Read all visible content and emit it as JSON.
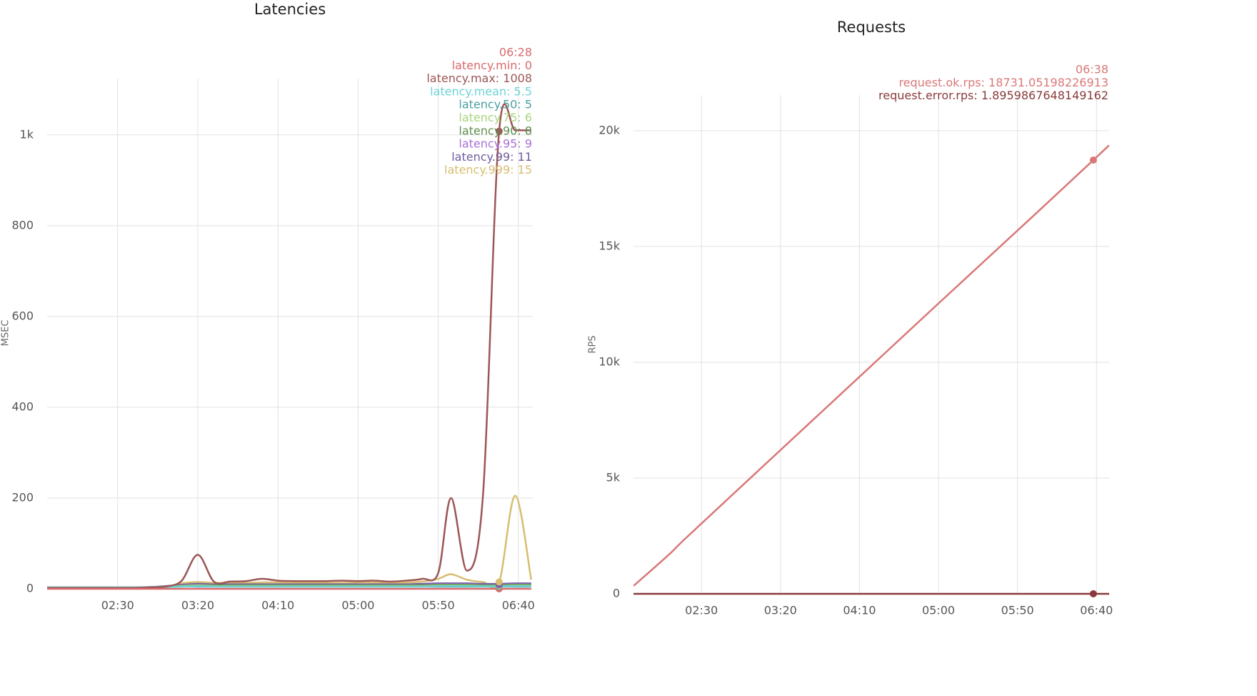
{
  "chart_data": [
    {
      "type": "line",
      "title": "Latencies",
      "y_label": "MSEC",
      "x": [
        "01:46",
        "02:00",
        "02:10",
        "02:20",
        "02:30",
        "02:40",
        "02:50",
        "03:00",
        "03:10",
        "03:20",
        "03:30",
        "03:40",
        "03:50",
        "04:00",
        "04:10",
        "04:20",
        "04:30",
        "04:40",
        "04:50",
        "05:00",
        "05:10",
        "05:20",
        "05:30",
        "05:40",
        "05:50",
        "05:58",
        "06:08",
        "06:18",
        "06:28",
        "06:38",
        "06:48"
      ],
      "series": [
        {
          "name": "latency.min",
          "color": "#d9696c",
          "values": [
            0,
            0,
            0,
            0,
            0,
            0,
            0,
            0,
            0,
            0,
            0,
            0,
            0,
            0,
            0,
            0,
            0,
            0,
            0,
            0,
            0,
            0,
            0,
            0,
            0,
            0,
            0,
            0,
            0,
            0,
            0
          ]
        },
        {
          "name": "latency.max",
          "color": "#9c5656",
          "values": [
            2,
            2,
            2,
            2,
            2,
            2,
            3,
            5,
            18,
            75,
            16,
            16,
            17,
            22,
            18,
            17,
            17,
            17,
            18,
            17,
            18,
            16,
            18,
            22,
            35,
            200,
            40,
            210,
            1008,
            1010,
            1010
          ]
        },
        {
          "name": "latency.mean",
          "color": "#6dd3d6",
          "values": [
            3,
            3,
            3,
            3,
            3,
            3,
            3,
            4,
            5,
            6,
            5,
            5,
            5,
            5,
            5,
            5,
            5,
            5,
            5,
            5,
            5,
            5,
            5,
            5,
            6,
            6,
            6,
            5.5,
            5.5,
            6,
            6
          ]
        },
        {
          "name": "latency.50",
          "color": "#4a9ea0",
          "values": [
            3,
            3,
            3,
            3,
            3,
            3,
            3,
            4,
            5,
            5,
            5,
            5,
            5,
            5,
            5,
            5,
            5,
            5,
            5,
            5,
            5,
            5,
            5,
            5,
            5,
            5,
            5,
            5,
            5,
            5,
            5
          ]
        },
        {
          "name": "latency.75",
          "color": "#a6d57a",
          "values": [
            3,
            3,
            3,
            3,
            3,
            3,
            3,
            4,
            6,
            7,
            6,
            6,
            6,
            6,
            6,
            6,
            6,
            6,
            6,
            6,
            6,
            6,
            6,
            6,
            7,
            7,
            7,
            6,
            6,
            7,
            7
          ]
        },
        {
          "name": "latency.90",
          "color": "#5f8f4f",
          "values": [
            3,
            3,
            3,
            3,
            3,
            3,
            3,
            5,
            7,
            8,
            8,
            8,
            8,
            8,
            8,
            8,
            8,
            8,
            8,
            8,
            8,
            8,
            8,
            8,
            9,
            9,
            9,
            8,
            8,
            9,
            9
          ]
        },
        {
          "name": "latency.95",
          "color": "#a970d8",
          "values": [
            3,
            3,
            3,
            3,
            3,
            3,
            4,
            5,
            8,
            9,
            9,
            9,
            9,
            9,
            9,
            9,
            9,
            9,
            9,
            9,
            9,
            9,
            9,
            9,
            10,
            10,
            10,
            9,
            9,
            10,
            10
          ]
        },
        {
          "name": "latency.99",
          "color": "#6f5c9f",
          "values": [
            3,
            3,
            3,
            3,
            3,
            3,
            4,
            6,
            9,
            11,
            10,
            10,
            10,
            10,
            10,
            10,
            10,
            10,
            10,
            10,
            10,
            10,
            10,
            11,
            12,
            12,
            12,
            11,
            11,
            12,
            12
          ]
        },
        {
          "name": "latency.999",
          "color": "#d7bd70",
          "values": [
            2,
            1,
            1,
            1,
            1,
            2,
            3,
            5,
            12,
            15,
            13,
            13,
            13,
            14,
            14,
            13,
            13,
            13,
            13,
            14,
            14,
            13,
            14,
            16,
            22,
            32,
            20,
            15,
            15,
            205,
            20
          ]
        }
      ],
      "xlim": [
        "01:46",
        "06:49"
      ],
      "xticks": [
        "02:30",
        "03:20",
        "04:10",
        "05:00",
        "05:50",
        "06:40"
      ],
      "ylim": [
        0,
        1124
      ],
      "yticks": [
        0,
        200,
        400,
        600,
        800,
        {
          "value": 1000,
          "label": "1k"
        }
      ],
      "grid": true,
      "hover": {
        "x": "06:28",
        "labels": [
          "latency.min: 0",
          "latency.max: 1008",
          "latency.mean: 5.5",
          "latency.50: 5",
          "latency.75: 6",
          "latency.90: 8",
          "latency.95: 9",
          "latency.99: 11",
          "latency.999: 15"
        ]
      }
    },
    {
      "type": "line",
      "title": "Requests",
      "y_label": "RPS",
      "x": [
        "01:47",
        "02:09",
        "02:20",
        "03:00",
        "04:00",
        "05:00",
        "06:00",
        "06:38",
        "06:48"
      ],
      "series": [
        {
          "name": "request.ok.rps",
          "color": "#d97777",
          "values": [
            340,
            1667,
            2400,
            4940,
            8740,
            12540,
            16320,
            18731.05198226913,
            19370
          ]
        },
        {
          "name": "request.error.rps",
          "color": "#8a3a3c",
          "values": [
            1.9,
            1.9,
            1.9,
            1.9,
            1.9,
            1.9,
            1.9,
            1.8959867648149162,
            1.9
          ]
        }
      ],
      "xlim": [
        "01:47",
        "06:48"
      ],
      "xticks": [
        "02:30",
        "03:20",
        "04:10",
        "05:00",
        "05:50",
        "06:40"
      ],
      "ylim": [
        0,
        21540
      ],
      "yticks": [
        0,
        {
          "value": 5000,
          "label": "5k"
        },
        {
          "value": 10000,
          "label": "10k"
        },
        {
          "value": 15000,
          "label": "15k"
        },
        {
          "value": 20000,
          "label": "20k"
        }
      ],
      "grid": true,
      "hover": {
        "x": "06:38",
        "labels": [
          "request.ok.rps: 18731.05198226913",
          "request.error.rps: 1.8959867648149162"
        ]
      }
    }
  ]
}
